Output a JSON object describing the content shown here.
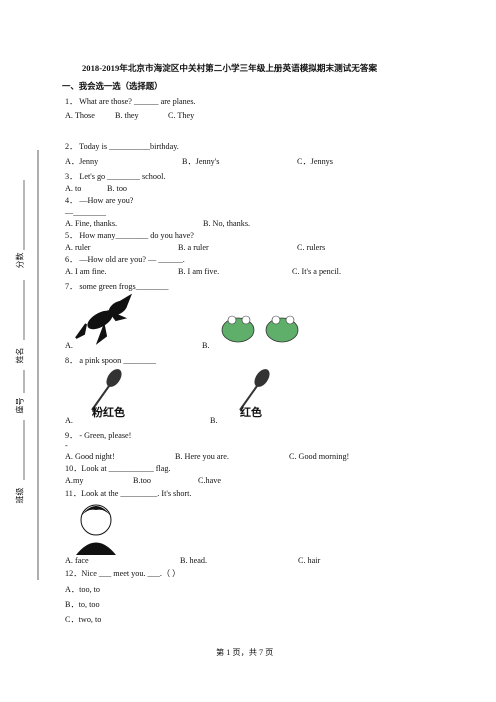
{
  "header": {
    "title": "2018-2019年北京市海淀区中关村第二小学三年级上册英语模拟期末测试无答案"
  },
  "section": "一、我会选一选（选择题）",
  "sidebar": [
    "分数",
    "姓名",
    "座号",
    "班级"
  ],
  "questions": [
    {
      "stem": "1． What are those? ______ are planes.",
      "options": [
        "A. Those",
        "B. they",
        "C. They"
      ]
    },
    {
      "stem": "2． Today is __________birthday.",
      "options": [
        "A．Jenny",
        "B．Jenny's",
        "C．Jennys"
      ]
    },
    {
      "stem": "3． Let's go ________ school.",
      "options": [
        "A. to",
        "B. too"
      ]
    },
    {
      "stem": "4． —How are you?",
      "extra": "—________",
      "options": [
        "A. Fine, thanks.",
        "B. No, thanks."
      ]
    },
    {
      "stem": "5． How many________ do you have?",
      "options": [
        "A. ruler",
        "B. a ruler",
        "C. rulers"
      ]
    },
    {
      "stem": "6． —How old are you? — ______.",
      "options": [
        "A. I am fine.",
        "B. I am five.",
        "C. It's a pencil."
      ]
    },
    {
      "stem": "7． some green frogs________",
      "options": [
        "A.",
        "B."
      ]
    },
    {
      "stem": "8． a pink spoon ________",
      "options": [
        "A.",
        "B."
      ],
      "image_labels": [
        "粉红色",
        "红色"
      ]
    },
    {
      "stem": "9． - Green, please!",
      "extra": "-",
      "options": [
        "A. Good night!",
        "B. Here you are.",
        "C. Good morning!"
      ]
    },
    {
      "stem": "10．Look at ___________ flag.",
      "options": [
        "A.my",
        "B.too",
        "C.have"
      ]
    },
    {
      "stem": "11．Look at the _________. It's short.",
      "options": [
        "A. face",
        "B. head.",
        "C. hair"
      ]
    },
    {
      "stem": "12．Nice ___ meet you. ___.（ ）",
      "options": [
        "A．too, to",
        "B．to, too",
        "C．two, to"
      ]
    }
  ],
  "footer": "第 1 页，共 7 页"
}
